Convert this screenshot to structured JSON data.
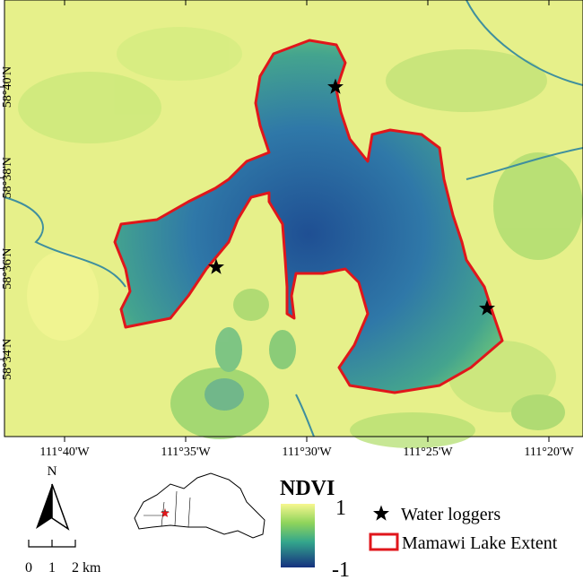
{
  "map": {
    "lat_labels": [
      "58°40'N",
      "58°38'N",
      "58°36'N",
      "58°34'N"
    ],
    "lon_labels": [
      "111°40'W",
      "111°35'W",
      "111°30'W",
      "111°25'W",
      "111°20'W"
    ]
  },
  "north_label": "N",
  "scale_bar": {
    "labels": [
      "0",
      "1",
      "2 km"
    ]
  },
  "ndvi_legend": {
    "title": "NDVI",
    "max_label": "1",
    "min_label": "-1"
  },
  "legend": {
    "items": [
      "Water loggers",
      "Mamawi Lake Extent"
    ]
  }
}
